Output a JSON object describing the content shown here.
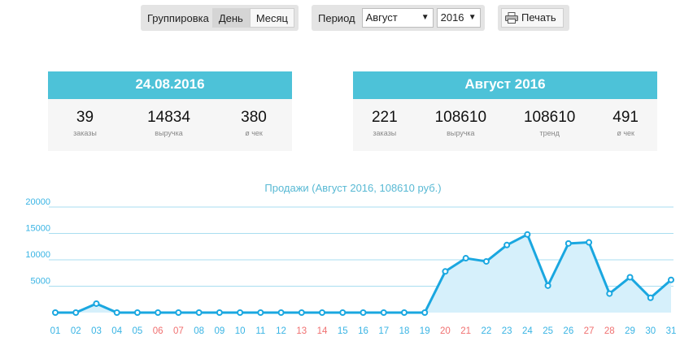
{
  "toolbar": {
    "grouping_label": "Группировка",
    "grouping_options": [
      "День",
      "Месяц"
    ],
    "grouping_active": 0,
    "period_label": "Период",
    "month_value": "Август",
    "year_value": "2016",
    "print_label": "Печать",
    "print_icon": "printer-icon"
  },
  "day_card": {
    "title": "24.08.2016",
    "stats": [
      {
        "value": "39",
        "label": "заказы"
      },
      {
        "value": "14834",
        "label": "выручка"
      },
      {
        "value": "380",
        "label": "ø чек"
      }
    ]
  },
  "month_card": {
    "title": "Август 2016",
    "stats": [
      {
        "value": "221",
        "label": "заказы"
      },
      {
        "value": "108610",
        "label": "выручка"
      },
      {
        "value": "108610",
        "label": "тренд"
      },
      {
        "value": "491",
        "label": "ø чек"
      }
    ]
  },
  "colors": {
    "accent": "#4dc2d8",
    "line": "#1aa7e0",
    "area": "#d6f0fb",
    "weekend": "#f07070"
  },
  "chart_data": {
    "type": "area",
    "title": "Продажи (Август 2016, 108610 руб.)",
    "x": [
      "01",
      "02",
      "03",
      "04",
      "05",
      "06",
      "07",
      "08",
      "09",
      "10",
      "11",
      "12",
      "13",
      "14",
      "15",
      "16",
      "17",
      "18",
      "19",
      "20",
      "21",
      "22",
      "23",
      "24",
      "25",
      "26",
      "27",
      "28",
      "29",
      "30",
      "31"
    ],
    "weekend_days": [
      "06",
      "07",
      "13",
      "14",
      "20",
      "21",
      "27",
      "28"
    ],
    "series": [
      {
        "values": [
          0,
          0,
          1700,
          0,
          0,
          0,
          0,
          0,
          0,
          0,
          0,
          0,
          0,
          0,
          0,
          0,
          0,
          0,
          0,
          7800,
          10300,
          9700,
          12800,
          14800,
          5100,
          13100,
          13300,
          3600,
          6700,
          2800,
          6200
        ]
      }
    ],
    "ylim": [
      0,
      20000
    ],
    "yticks": [
      5000,
      10000,
      15000,
      20000
    ],
    "grid": true
  }
}
